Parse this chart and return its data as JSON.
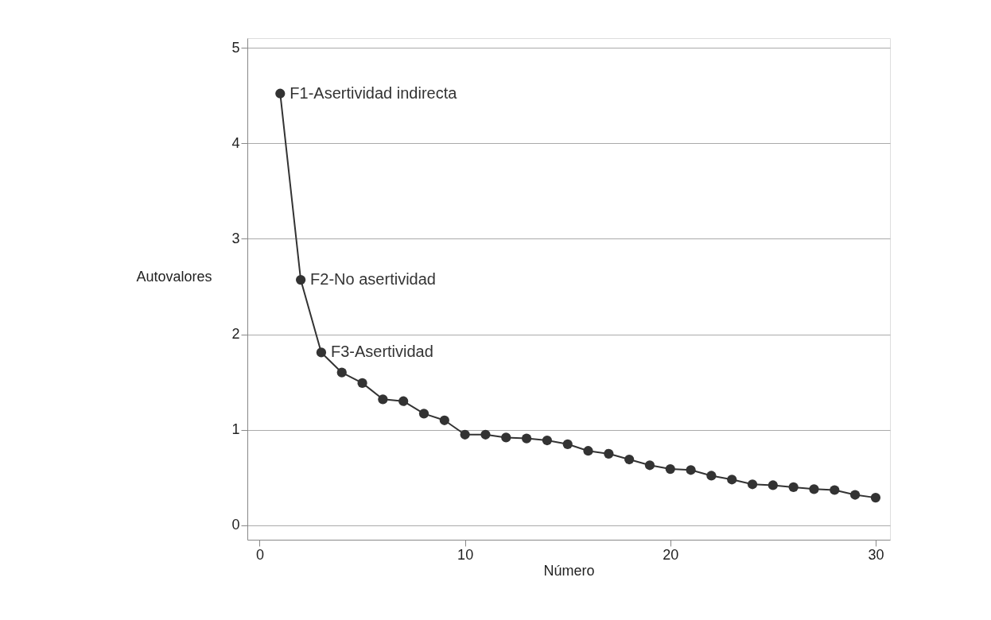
{
  "chart_data": {
    "type": "line",
    "xlabel": "Número",
    "ylabel": "Autovalores",
    "x": [
      1,
      2,
      3,
      4,
      5,
      6,
      7,
      8,
      9,
      10,
      11,
      12,
      13,
      14,
      15,
      16,
      17,
      18,
      19,
      20,
      21,
      22,
      23,
      24,
      25,
      26,
      27,
      28,
      29,
      30
    ],
    "series": [
      {
        "color": "#333333",
        "values": [
          4.52,
          2.57,
          1.81,
          1.6,
          1.49,
          1.32,
          1.3,
          1.17,
          1.1,
          0.95,
          0.95,
          0.92,
          0.91,
          0.89,
          0.85,
          0.78,
          0.75,
          0.69,
          0.63,
          0.59,
          0.58,
          0.52,
          0.48,
          0.43,
          0.42,
          0.4,
          0.38,
          0.37,
          0.32,
          0.29
        ]
      }
    ],
    "annotations": [
      {
        "text": "F1-Asertividad indirecta",
        "x": 1,
        "y": 4.52
      },
      {
        "text": "F2-No asertividad",
        "x": 2,
        "y": 2.57
      },
      {
        "text": "F3-Asertividad",
        "x": 3,
        "y": 1.81
      }
    ],
    "xlim": [
      -0.6,
      30.7
    ],
    "ylim": [
      -0.15,
      5.1
    ],
    "xticks": [
      0,
      10,
      20,
      30
    ],
    "yticks": [
      0,
      1,
      2,
      3,
      4,
      5
    ],
    "grid": "y",
    "marker": "circle",
    "line_style": "solid",
    "legend": false
  }
}
